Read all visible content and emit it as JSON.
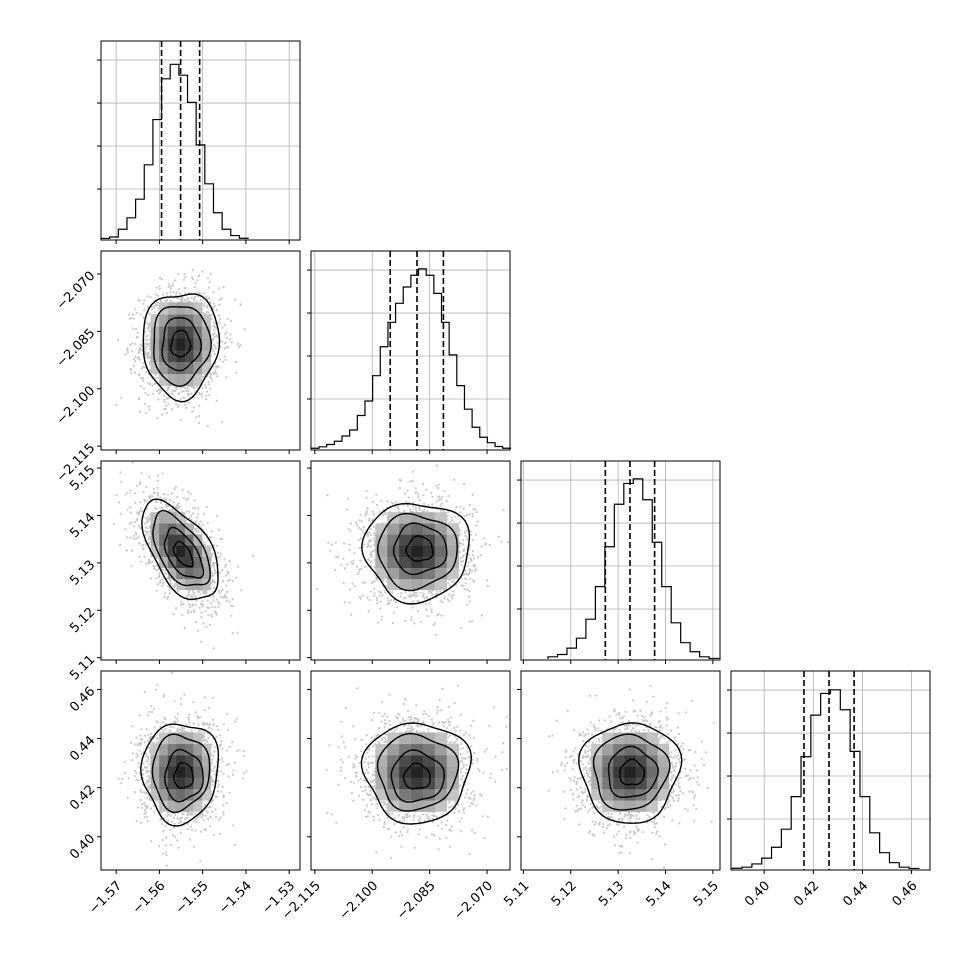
{
  "chart_data": {
    "type": "corner",
    "grid": true,
    "parameters": [
      {
        "ticks": [
          -1.57,
          -1.56,
          -1.55,
          -1.54,
          -1.53
        ],
        "tick_labels": [
          "−1.57",
          "−1.56",
          "−1.55",
          "−1.54",
          "−1.53"
        ],
        "range": [
          -1.5735,
          -1.5275
        ],
        "quantiles": [
          -1.5595,
          -1.5551,
          -1.5507
        ],
        "hist_centers": [
          -1.5725,
          -1.5705,
          -1.5685,
          -1.5665,
          -1.5645,
          -1.5625,
          -1.5605,
          -1.5585,
          -1.5565,
          -1.5545,
          -1.5525,
          -1.5505,
          -1.5485,
          -1.5465,
          -1.5445,
          -1.5425,
          -1.5405
        ],
        "hist_values": [
          0.003,
          0.011,
          0.054,
          0.117,
          0.22,
          0.41,
          0.66,
          0.885,
          0.965,
          0.905,
          0.755,
          0.52,
          0.305,
          0.145,
          0.054,
          0.019,
          0.004
        ]
      },
      {
        "ticks": [
          -2.115,
          -2.1,
          -2.085,
          -2.07
        ],
        "tick_labels": [
          "−2.115",
          "−2.100",
          "−2.085",
          "−2.070"
        ],
        "range": [
          -2.116,
          -2.064
        ],
        "quantiles": [
          -2.0953,
          -2.0883,
          -2.0814
        ],
        "hist_centers": [
          -2.1149,
          -2.1129,
          -2.1109,
          -2.1089,
          -2.1069,
          -2.1049,
          -2.1029,
          -2.1009,
          -2.0989,
          -2.0969,
          -2.0949,
          -2.0929,
          -2.0909,
          -2.0889,
          -2.0869,
          -2.0849,
          -2.0829,
          -2.0809,
          -2.0789,
          -2.0769,
          -2.0749,
          -2.0729,
          -2.0709,
          -2.0689,
          -2.0669,
          -2.0649
        ],
        "hist_values": [
          0.004,
          0.012,
          0.025,
          0.043,
          0.072,
          0.105,
          0.185,
          0.265,
          0.405,
          0.565,
          0.7,
          0.805,
          0.895,
          0.96,
          0.995,
          0.96,
          0.86,
          0.7,
          0.52,
          0.35,
          0.22,
          0.12,
          0.065,
          0.035,
          0.014,
          0.004
        ]
      },
      {
        "ticks": [
          5.11,
          5.12,
          5.13,
          5.14,
          5.15
        ],
        "tick_labels": [
          "5.11",
          "5.12",
          "5.13",
          "5.14",
          "5.15"
        ],
        "range": [
          5.1095,
          5.1515
        ],
        "quantiles": [
          5.1273,
          5.1325,
          5.1377
        ],
        "hist_centers": [
          5.1162,
          5.1182,
          5.1202,
          5.1222,
          5.1242,
          5.1262,
          5.1282,
          5.1302,
          5.1322,
          5.1342,
          5.1362,
          5.1382,
          5.1402,
          5.1422,
          5.1442,
          5.1462,
          5.1482,
          5.1502
        ],
        "hist_values": [
          0.012,
          0.025,
          0.06,
          0.115,
          0.22,
          0.4,
          0.62,
          0.855,
          0.97,
          0.995,
          0.88,
          0.645,
          0.4,
          0.2,
          0.09,
          0.04,
          0.012,
          0.003
        ]
      },
      {
        "ticks": [
          0.4,
          0.42,
          0.44,
          0.46
        ],
        "tick_labels": [
          "0.40",
          "0.42",
          "0.44",
          "0.46"
        ],
        "range": [
          0.3865,
          0.4675
        ],
        "quantiles": [
          0.4162,
          0.4264,
          0.4366
        ],
        "hist_centers": [
          0.389,
          0.393,
          0.397,
          0.401,
          0.405,
          0.409,
          0.413,
          0.417,
          0.421,
          0.425,
          0.429,
          0.433,
          0.437,
          0.441,
          0.445,
          0.449,
          0.453,
          0.457,
          0.461
        ],
        "hist_values": [
          0.004,
          0.01,
          0.028,
          0.06,
          0.12,
          0.22,
          0.4,
          0.62,
          0.85,
          0.97,
          0.99,
          0.88,
          0.65,
          0.4,
          0.2,
          0.09,
          0.035,
          0.01,
          0.003
        ]
      }
    ],
    "pair_panels": [
      {
        "row": 1,
        "col": 0,
        "mean": [
          -1.5551,
          -2.0883
        ],
        "sd": [
          0.0044,
          0.0069
        ],
        "rho": 0.03,
        "inner_offset": [
          0.0,
          0.0
        ]
      },
      {
        "row": 2,
        "col": 0,
        "mean": [
          -1.5551,
          5.1325
        ],
        "sd": [
          0.0044,
          0.0052
        ],
        "rho": -0.55,
        "inner_offset": [
          0.0006,
          -0.0007
        ]
      },
      {
        "row": 2,
        "col": 1,
        "mean": [
          -2.0883,
          5.1325
        ],
        "sd": [
          0.0069,
          0.0052
        ],
        "rho": 0.0,
        "inner_offset": [
          0.0007,
          0.0004
        ]
      },
      {
        "row": 3,
        "col": 0,
        "mean": [
          -1.5551,
          0.4264
        ],
        "sd": [
          0.0044,
          0.0102
        ],
        "rho": 0.03,
        "inner_offset": [
          0.0007,
          -0.0016
        ]
      },
      {
        "row": 3,
        "col": 1,
        "mean": [
          -2.0883,
          0.4264
        ],
        "sd": [
          0.0069,
          0.0102
        ],
        "rho": 0.0,
        "inner_offset": [
          0.0,
          -0.002
        ]
      },
      {
        "row": 3,
        "col": 2,
        "mean": [
          5.1325,
          0.4264
        ],
        "sd": [
          0.0052,
          0.0102
        ],
        "rho": 0.02,
        "inner_offset": [
          0.0004,
          -0.0004
        ]
      }
    ],
    "contour_levels_sigma": [
      0.5,
      1.0,
      1.5,
      2.0
    ]
  }
}
